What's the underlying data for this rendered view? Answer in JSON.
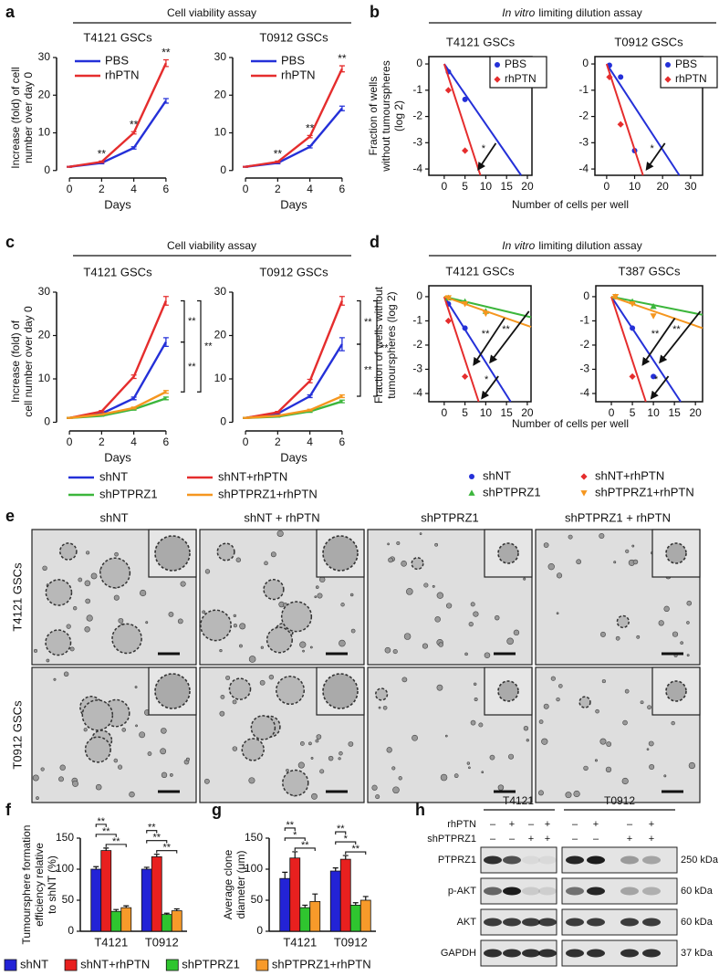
{
  "panels": [
    {
      "letter": "a",
      "header": "Cell viability assay"
    },
    {
      "letter": "b",
      "header_em": "In vitro",
      "header": "limiting dilution assay",
      "xlabel": "Number of cells per well",
      "ylabel": [
        "Fraction of wells",
        "without tumourspheres",
        "(log 2)"
      ]
    },
    {
      "letter": "c",
      "header": "Cell viability assay"
    },
    {
      "letter": "d",
      "header_em": "In vitro",
      "header": "limiting dilution assay",
      "xlabel": "Number of cells per well",
      "ylabel": [
        "Fraction of wells without",
        "tumourspheres (log 2)"
      ]
    },
    {
      "letter": "e",
      "columns": [
        "shNT",
        "shNT + rhPTN",
        "shPTPRZ1",
        "shPTPRZ1 + rhPTN"
      ],
      "rows": [
        "T4121 GSCs",
        "T0912 GSCs"
      ]
    },
    {
      "letter": "f"
    },
    {
      "letter": "g"
    },
    {
      "letter": "h",
      "groups": [
        "T4121",
        "T0912"
      ],
      "treatments": [
        {
          "label": "rhPTN",
          "signs": [
            "–",
            "+",
            "–",
            "+",
            "–",
            "+",
            "–",
            "+"
          ]
        },
        {
          "label": "shPTPRZ1",
          "signs": [
            "–",
            "–",
            "+",
            "+",
            "–",
            "–",
            "+",
            "+"
          ]
        }
      ],
      "blots": [
        {
          "label": "PTPRZ1",
          "size": "250 kDa"
        },
        {
          "label": "p-AKT",
          "size": "60 kDa"
        },
        {
          "label": "AKT",
          "size": "60 kDa"
        },
        {
          "label": "GAPDH",
          "size": "37 kDa"
        }
      ]
    }
  ],
  "chart_data": [
    {
      "type": "line",
      "subtitle": "T4121 GSCs",
      "ylabel": [
        "Increase (fold) of cell",
        "number over day 0"
      ],
      "xlabel": "Days",
      "x": [
        0,
        2,
        4,
        6
      ],
      "xlim": [
        -0.8,
        6.8
      ],
      "xticks": [
        0,
        2,
        4,
        6
      ],
      "ylim": [
        -2,
        30
      ],
      "yticks": [
        0,
        10,
        20,
        30
      ],
      "legend": "upper left",
      "series": [
        {
          "name": "PBS",
          "color": "#2430d8",
          "values": [
            1,
            2,
            6,
            18.5
          ],
          "errors": [
            0.1,
            0.2,
            0.3,
            0.6
          ]
        },
        {
          "name": "rhPTN",
          "color": "#e52d2d",
          "values": [
            1,
            2.3,
            10,
            28.5
          ],
          "errors": [
            0.1,
            0.2,
            0.3,
            0.9
          ]
        }
      ],
      "annotations": [
        "**",
        "**",
        "**"
      ]
    },
    {
      "type": "line",
      "subtitle": "T0912 GSCs",
      "xlabel": "Days",
      "x": [
        0,
        2,
        4,
        6
      ],
      "xlim": [
        -0.8,
        6.8
      ],
      "xticks": [
        0,
        2,
        4,
        6
      ],
      "ylim": [
        -2,
        30
      ],
      "yticks": [
        0,
        10,
        20,
        30
      ],
      "legend": "upper left",
      "series": [
        {
          "name": "PBS",
          "color": "#2430d8",
          "values": [
            1,
            2,
            6.3,
            16.5
          ],
          "errors": [
            0.1,
            0.2,
            0.3,
            0.6
          ]
        },
        {
          "name": "rhPTN",
          "color": "#e52d2d",
          "values": [
            1,
            2.3,
            9,
            27
          ],
          "errors": [
            0.1,
            0.2,
            0.3,
            0.8
          ]
        }
      ],
      "annotations": [
        "**",
        "**",
        "**"
      ]
    },
    {
      "type": "scatter",
      "subtitle": "T4121 GSCs",
      "xlim": [
        -3.7,
        21.1
      ],
      "xticks": [
        0,
        5,
        10,
        15,
        20
      ],
      "ylim": [
        -4.24,
        0.28
      ],
      "yticks": [
        0,
        -1,
        -2,
        -3,
        -4
      ],
      "legend": "upper right",
      "series": [
        {
          "name": "PBS",
          "color": "#2430d8",
          "marker": "circle",
          "x": [
            1,
            5
          ],
          "values": [
            -0.3,
            -1.35
          ],
          "fit": {
            "x": [
              0,
              18.5
            ],
            "values": [
              0,
              -4.24
            ]
          }
        },
        {
          "name": "rhPTN",
          "color": "#e52d2d",
          "marker": "diamond",
          "x": [
            1,
            5
          ],
          "values": [
            -1,
            -3.3
          ],
          "fit": {
            "x": [
              0,
              8.7
            ],
            "values": [
              0,
              -4.24
            ]
          }
        }
      ],
      "annotations": [
        "*"
      ]
    },
    {
      "type": "scatter",
      "subtitle": "T0912 GSCs",
      "xlim": [
        -4.2,
        34.3
      ],
      "xticks": [
        0,
        10,
        20,
        30
      ],
      "ylim": [
        -4.24,
        0.28
      ],
      "yticks": [
        0,
        -1,
        -2,
        -3,
        -4
      ],
      "legend": "upper right",
      "series": [
        {
          "name": "PBS",
          "color": "#2430d8",
          "marker": "circle",
          "x": [
            1,
            5,
            10
          ],
          "values": [
            -0.05,
            -0.5,
            -3.3
          ],
          "fit": {
            "x": [
              0,
              26
            ],
            "values": [
              0,
              -4.24
            ]
          }
        },
        {
          "name": "rhPTN",
          "color": "#e52d2d",
          "marker": "diamond",
          "x": [
            1,
            5
          ],
          "values": [
            -0.5,
            -2.3
          ],
          "fit": {
            "x": [
              0,
              13
            ],
            "values": [
              0,
              -4.24
            ]
          }
        }
      ],
      "annotations": [
        "*"
      ]
    },
    {
      "type": "line",
      "subtitle": "T4121 GSCs",
      "ylabel": [
        "Increase (fold) of",
        "cell number over day 0"
      ],
      "xlabel": "Days",
      "x": [
        0,
        2,
        4,
        6
      ],
      "xlim": [
        -0.8,
        6.8
      ],
      "xticks": [
        0,
        2,
        4,
        6
      ],
      "ylim": [
        -2,
        30
      ],
      "yticks": [
        0,
        10,
        20,
        30
      ],
      "legend": "below",
      "series": [
        {
          "name": "shNT",
          "color": "#2430d8",
          "values": [
            1,
            2,
            5.5,
            18.5
          ],
          "errors": [
            0.1,
            0.2,
            0.3,
            1
          ]
        },
        {
          "name": "shNT+rhPTN",
          "color": "#e52d2d",
          "values": [
            1,
            2.5,
            10.5,
            28
          ],
          "errors": [
            0.1,
            0.2,
            0.4,
            1
          ]
        },
        {
          "name": "shPTPRZ1",
          "color": "#3cb63c",
          "values": [
            1,
            1.5,
            3,
            5.5
          ],
          "errors": [
            0.1,
            0.1,
            0.2,
            0.3
          ]
        },
        {
          "name": "shPTPRZ1+rhPTN",
          "color": "#f5961f",
          "values": [
            1,
            1.8,
            3.3,
            7
          ],
          "errors": [
            0.1,
            0.1,
            0.2,
            0.3
          ]
        }
      ],
      "annotations": [
        "**",
        "**",
        "**"
      ]
    },
    {
      "type": "line",
      "subtitle": "T0912 GSCs",
      "xlabel": "Days",
      "x": [
        0,
        2,
        4,
        6
      ],
      "xlim": [
        -0.8,
        6.8
      ],
      "xticks": [
        0,
        2,
        4,
        6
      ],
      "ylim": [
        -2,
        30
      ],
      "yticks": [
        0,
        10,
        20,
        30
      ],
      "series": [
        {
          "name": "shNT",
          "color": "#2430d8",
          "values": [
            1,
            2,
            6,
            18
          ],
          "errors": [
            0.1,
            0.2,
            0.3,
            1.5
          ]
        },
        {
          "name": "shNT+rhPTN",
          "color": "#e52d2d",
          "values": [
            1,
            2.3,
            9.5,
            28
          ],
          "errors": [
            0.1,
            0.2,
            0.4,
            1
          ]
        },
        {
          "name": "shPTPRZ1",
          "color": "#3cb63c",
          "values": [
            1,
            1.3,
            2.5,
            4.8
          ],
          "errors": [
            0.1,
            0.1,
            0.2,
            0.3
          ]
        },
        {
          "name": "shPTPRZ1+rhPTN",
          "color": "#f5961f",
          "values": [
            1,
            1.5,
            2.8,
            6
          ],
          "errors": [
            0.1,
            0.1,
            0.2,
            0.3
          ]
        }
      ],
      "annotations": [
        "**",
        "**",
        "**"
      ]
    },
    {
      "type": "scatter",
      "subtitle": "T4121 GSCs",
      "xlim": [
        -3.7,
        20.9
      ],
      "xticks": [
        0,
        5,
        10,
        15,
        20
      ],
      "ylim": [
        -4.34,
        0.45
      ],
      "yticks": [
        0,
        -1,
        -2,
        -3,
        -4
      ],
      "legend": "below",
      "series": [
        {
          "name": "shNT",
          "color": "#2430d8",
          "marker": "circle",
          "x": [
            1,
            5
          ],
          "values": [
            -0.3,
            -1.3
          ],
          "fit": {
            "x": [
              0,
              16
            ],
            "values": [
              0,
              -4.34
            ]
          }
        },
        {
          "name": "shNT+rhPTN",
          "color": "#e52d2d",
          "marker": "diamond",
          "x": [
            1,
            5
          ],
          "values": [
            -1,
            -3.3
          ],
          "fit": {
            "x": [
              0,
              8.3
            ],
            "values": [
              0,
              -4.34
            ]
          }
        },
        {
          "name": "shPTPRZ1",
          "color": "#3cb63c",
          "marker": "triangle",
          "x": [
            1,
            5,
            10
          ],
          "values": [
            -0.05,
            -0.2,
            -0.6
          ],
          "fit": {
            "x": [
              0,
              20.9
            ],
            "values": [
              0,
              -0.85
            ]
          }
        },
        {
          "name": "shPTPRZ1+rhPTN",
          "color": "#f5961f",
          "marker": "triangle-down",
          "x": [
            1,
            5,
            10
          ],
          "values": [
            -0.05,
            -0.3,
            -0.7
          ],
          "fit": {
            "x": [
              0,
              20.9
            ],
            "values": [
              0,
              -1.25
            ]
          }
        }
      ],
      "annotations": [
        "**",
        "**",
        "*"
      ]
    },
    {
      "type": "scatter",
      "subtitle": "T387 GSCs",
      "xlim": [
        -3.7,
        21.7
      ],
      "xticks": [
        0,
        5,
        10,
        15,
        20
      ],
      "ylim": [
        -4.34,
        0.45
      ],
      "yticks": [
        0,
        -1,
        -2,
        -3,
        -4
      ],
      "series": [
        {
          "name": "shNT",
          "color": "#2430d8",
          "marker": "circle",
          "x": [
            5,
            10
          ],
          "values": [
            -1.3,
            -3.3
          ],
          "fit": {
            "x": [
              0,
              16.5
            ],
            "values": [
              0,
              -4.34
            ]
          }
        },
        {
          "name": "shNT+rhPTN",
          "color": "#e52d2d",
          "marker": "diamond",
          "x": [
            5
          ],
          "values": [
            -3.3
          ],
          "fit": {
            "x": [
              0,
              8.2
            ],
            "values": [
              0,
              -4.34
            ]
          }
        },
        {
          "name": "shPTPRZ1",
          "color": "#3cb63c",
          "marker": "triangle",
          "x": [
            1,
            5,
            10
          ],
          "values": [
            0,
            -0.2,
            -0.4
          ],
          "fit": {
            "x": [
              0,
              21.7
            ],
            "values": [
              0,
              -0.75
            ]
          }
        },
        {
          "name": "shPTPRZ1+rhPTN",
          "color": "#f5961f",
          "marker": "triangle-down",
          "x": [
            1,
            5,
            10
          ],
          "values": [
            0,
            -0.3,
            -0.8
          ],
          "fit": {
            "x": [
              0,
              21.7
            ],
            "values": [
              0,
              -1.3
            ]
          }
        }
      ],
      "annotations": [
        "**",
        "**",
        "*"
      ]
    },
    {
      "type": "bar",
      "ylabel": [
        "Tumoursphere formation",
        "efficiency relative",
        "to shNT (%)"
      ],
      "categories": [
        "T4121",
        "T0912"
      ],
      "ylim": [
        0,
        150
      ],
      "yticks": [
        0,
        50,
        100,
        150
      ],
      "legend": "below",
      "series": [
        {
          "name": "shNT",
          "color": "#2323d6",
          "values": [
            100,
            100
          ],
          "errors": [
            4,
            3
          ]
        },
        {
          "name": "shNT+rhPTN",
          "color": "#e8201f",
          "values": [
            130,
            120
          ],
          "errors": [
            4,
            4
          ]
        },
        {
          "name": "shPTPRZ1",
          "color": "#2fc52f",
          "values": [
            32,
            27
          ],
          "errors": [
            3,
            2
          ]
        },
        {
          "name": "shPTPRZ1+rhPTN",
          "color": "#f79a2a",
          "values": [
            38,
            33
          ],
          "errors": [
            3,
            3
          ]
        }
      ],
      "annotations": [
        [
          "**",
          "**",
          "**"
        ],
        [
          "**",
          "**",
          "**"
        ]
      ]
    },
    {
      "type": "bar",
      "ylabel": [
        "Average clone",
        "diameter (μm)"
      ],
      "categories": [
        "T4121",
        "T0912"
      ],
      "ylim": [
        0,
        150
      ],
      "yticks": [
        0,
        50,
        100,
        150
      ],
      "series": [
        {
          "name": "shNT",
          "color": "#2323d6",
          "values": [
            85,
            97
          ],
          "errors": [
            10,
            5
          ]
        },
        {
          "name": "shNT+rhPTN",
          "color": "#e8201f",
          "values": [
            118,
            116
          ],
          "errors": [
            10,
            6
          ]
        },
        {
          "name": "shPTPRZ1",
          "color": "#2fc52f",
          "values": [
            38,
            42
          ],
          "errors": [
            4,
            4
          ]
        },
        {
          "name": "shPTPRZ1+rhPTN",
          "color": "#f79a2a",
          "values": [
            48,
            50
          ],
          "errors": [
            12,
            6
          ]
        }
      ],
      "annotations": [
        [
          "**",
          "*",
          "**"
        ],
        [
          "**",
          "*",
          "**"
        ]
      ]
    }
  ]
}
